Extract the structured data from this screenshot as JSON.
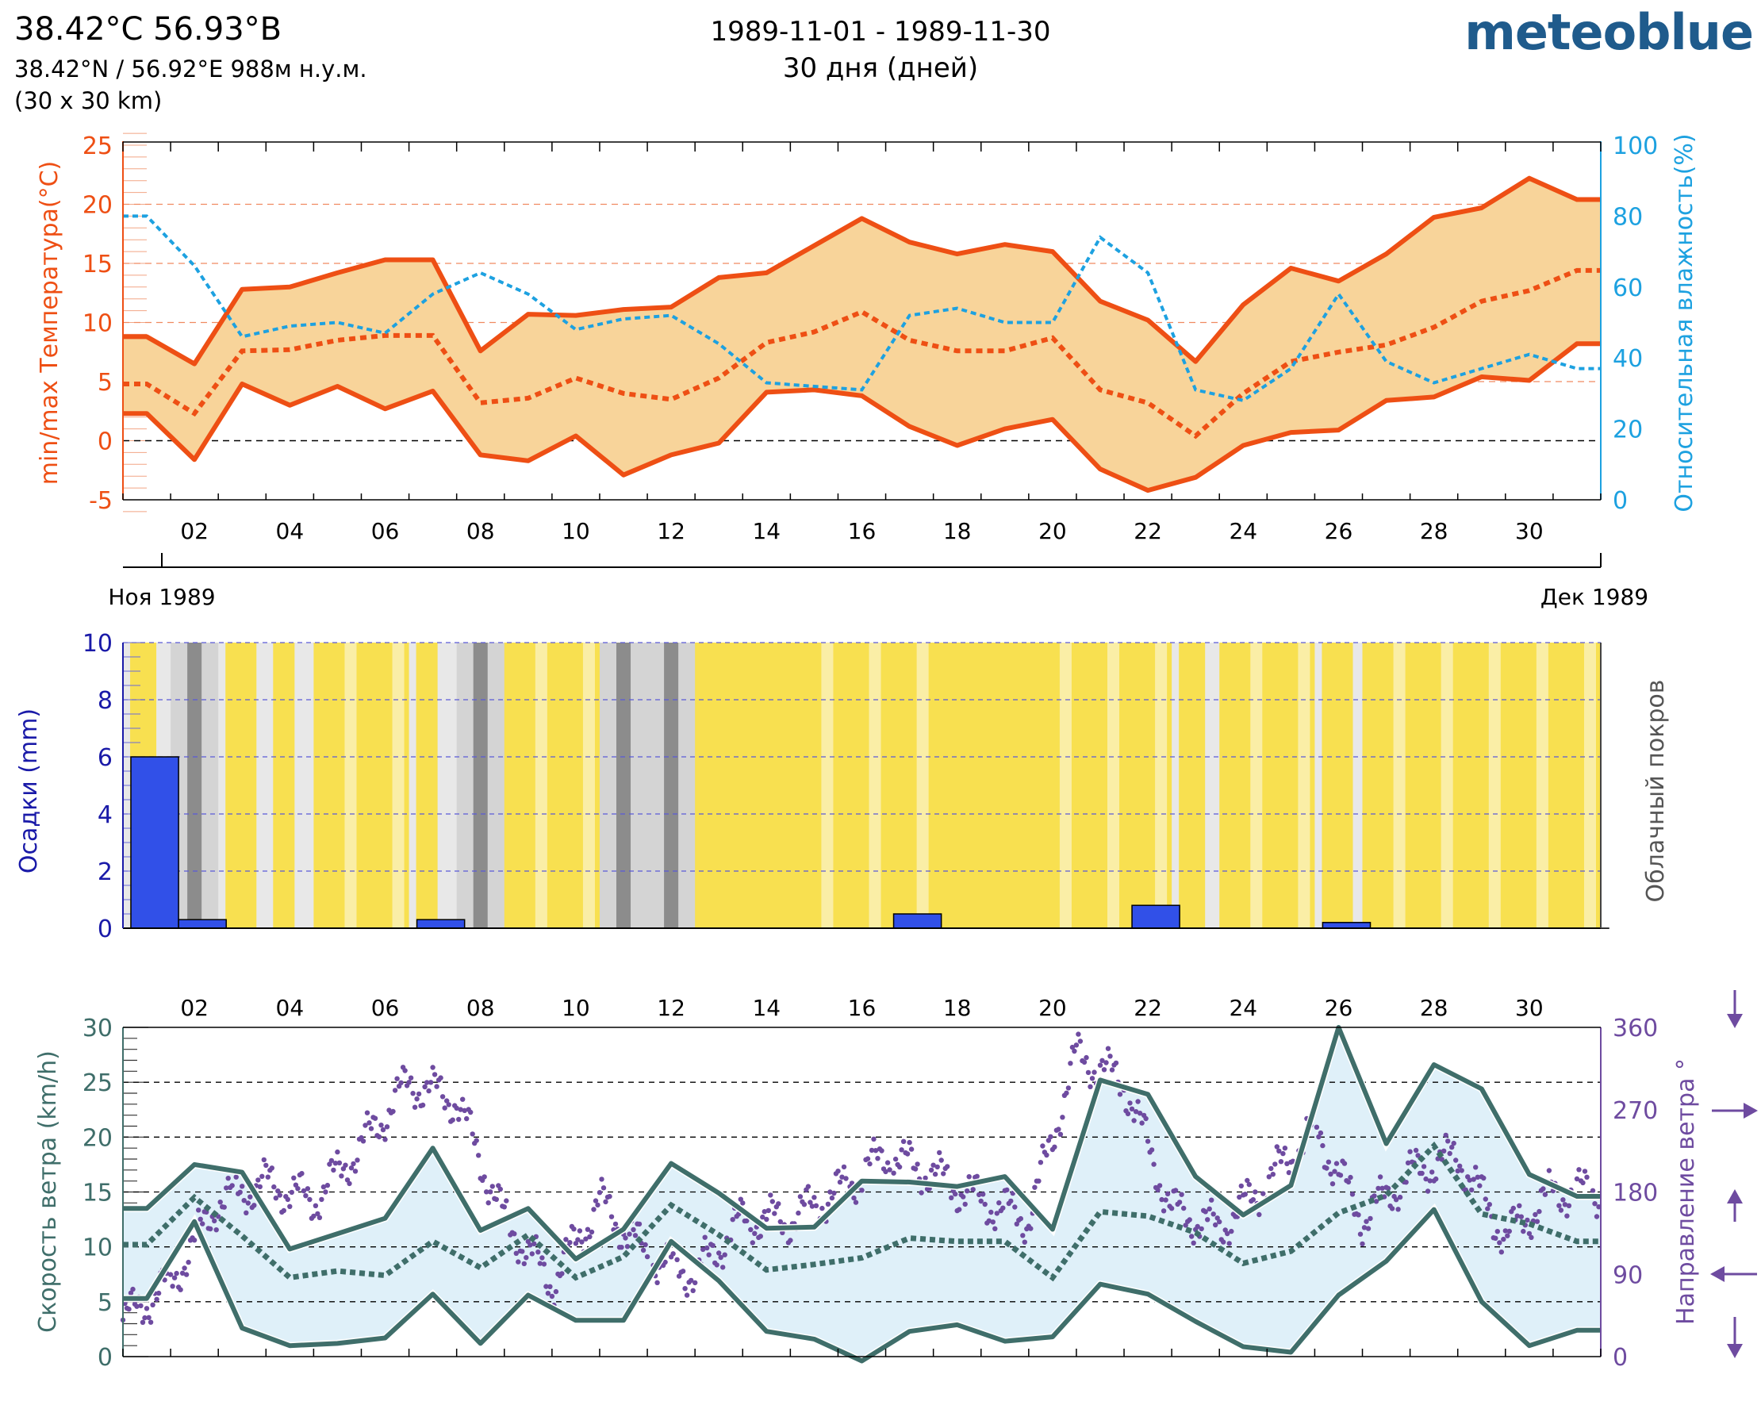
{
  "header": {
    "coords": "38.42°C 56.93°B",
    "latlon": "38.42°N / 56.92°E   988м н.у.м.",
    "grid": "(30 x 30 km)",
    "dates": "1989-11-01 - 1989-11-30",
    "days": "30 дня (дней)",
    "logo": "meteoblue"
  },
  "colors": {
    "temp": "#ee4f14",
    "temp_fill": "#f8d49a",
    "humidity": "#1da1e0",
    "precip": "#3150e8",
    "precip_axis": "#1a1aa8",
    "sun": "#f8e050",
    "sun_light": "#faeea6",
    "cloud": "#e8e8e8",
    "overcast": "#8c8c8c",
    "wind": "#3f6e6a",
    "wind_fill": "#dff0f9",
    "winddir": "#6e4ba0"
  },
  "chart_data": [
    {
      "id": "temperature",
      "type": "line",
      "x": [
        0.5,
        1.5,
        2.5,
        3.5,
        4.5,
        5.5,
        6.5,
        7.5,
        8.5,
        9.5,
        10.5,
        11.5,
        12.5,
        13.5,
        14.5,
        15.5,
        16.5,
        17.5,
        18.5,
        19.5,
        20.5,
        21.5,
        22.5,
        23.5,
        24.5,
        25.5,
        26.5,
        27.5,
        28.5,
        29.5,
        30.5
      ],
      "series": [
        {
          "name": "max",
          "values": [
            8.8,
            6.5,
            12.8,
            13,
            14.2,
            15.3,
            15.3,
            7.6,
            10.7,
            10.6,
            11.1,
            11.3,
            13.8,
            14.2,
            16.5,
            18.8,
            16.8,
            15.8,
            16.6,
            16,
            11.8,
            10.2,
            6.7,
            11.5,
            14.6,
            13.5,
            15.8,
            18.9,
            19.7,
            22.2,
            20.4
          ]
        },
        {
          "name": "mean",
          "values": [
            4.8,
            2.3,
            7.6,
            7.7,
            8.5,
            8.9,
            8.9,
            3.2,
            3.6,
            5.3,
            4,
            3.5,
            5.3,
            8.3,
            9.2,
            10.9,
            8.5,
            7.6,
            7.6,
            8.7,
            4.3,
            3.2,
            0.4,
            4,
            6.7,
            7.5,
            8.1,
            9.6,
            11.8,
            12.7,
            14.4
          ]
        },
        {
          "name": "min",
          "values": [
            2.3,
            -1.6,
            4.8,
            3,
            4.6,
            2.7,
            4.2,
            -1.2,
            -1.7,
            0.4,
            -2.9,
            -1.2,
            -0.2,
            4.1,
            4.3,
            3.8,
            1.2,
            -0.4,
            1,
            1.8,
            -2.4,
            -4.2,
            -3.1,
            -0.4,
            0.7,
            0.9,
            3.4,
            3.7,
            5.4,
            5.1,
            8.2
          ]
        },
        {
          "name": "humidity",
          "axis": "right",
          "values": [
            80,
            66,
            46,
            49,
            50,
            47,
            58,
            64,
            58,
            48,
            51,
            52,
            44,
            33,
            32,
            31,
            52,
            54,
            50,
            50,
            74,
            64,
            31,
            28,
            37,
            58,
            39,
            33,
            37,
            41,
            37
          ]
        }
      ],
      "ylabel": "min/max Температура(°C)",
      "ylabel_right": "Относительная влажность(%)",
      "ylim": [
        -5,
        25
      ],
      "ylim_right": [
        0,
        100
      ],
      "yticks": [
        "-5",
        "0",
        "5",
        "10",
        "15",
        "20",
        "25"
      ],
      "yticks_right": [
        "0",
        "20",
        "40",
        "60",
        "80",
        "100"
      ],
      "xticks": [
        "02",
        "04",
        "06",
        "08",
        "10",
        "12",
        "14",
        "16",
        "18",
        "20",
        "22",
        "24",
        "26",
        "28",
        "30"
      ],
      "month_start": "Ноя 1989",
      "month_end": "Дек 1989"
    },
    {
      "id": "precipitation",
      "type": "bar",
      "x": [
        0.5,
        1.5,
        2.5,
        3.5,
        4.5,
        5.5,
        6.5,
        7.5,
        8.5,
        9.5,
        10.5,
        11.5,
        12.5,
        13.5,
        14.5,
        15.5,
        16.5,
        17.5,
        18.5,
        19.5,
        20.5,
        21.5,
        22.5,
        23.5,
        24.5,
        25.5,
        26.5,
        27.5,
        28.5,
        29.5,
        30.5
      ],
      "values": [
        6,
        0.3,
        0,
        0,
        0,
        0,
        0.3,
        0,
        0,
        0,
        0,
        0,
        0,
        0,
        0,
        0,
        0.5,
        0,
        0,
        0,
        0,
        0.8,
        0,
        0,
        0,
        0.2,
        0,
        0,
        0,
        0,
        0
      ],
      "ylabel": "Осадки (mm)",
      "ylabel_right": "Облачный покров",
      "ylim": [
        0,
        10
      ],
      "yticks": [
        "0",
        "2",
        "4",
        "6",
        "8",
        "10"
      ],
      "cloud_cover_sunshine": [
        0.3,
        0.1,
        0.4,
        0.2,
        0.8,
        0.9,
        0.2,
        0.1,
        0.8,
        0.5,
        0.1,
        0.0,
        1.0,
        1.0,
        0.9,
        0.7,
        0.5,
        1.0,
        1.0,
        0.8,
        0.9,
        0.9,
        0.3,
        0.9,
        0.5,
        0.4,
        0.8,
        0.7,
        0.9,
        0.9,
        0.6
      ]
    },
    {
      "id": "wind",
      "type": "line",
      "x": [
        0.5,
        1.5,
        2.5,
        3.5,
        4.5,
        5.5,
        6.5,
        7.5,
        8.5,
        9.5,
        10.5,
        11.5,
        12.5,
        13.5,
        14.5,
        15.5,
        16.5,
        17.5,
        18.5,
        19.5,
        20.5,
        21.5,
        22.5,
        23.5,
        24.5,
        25.5,
        26.5,
        27.5,
        28.5,
        29.5,
        30.5
      ],
      "series": [
        {
          "name": "max",
          "values": [
            13.5,
            17.5,
            16.8,
            9.8,
            11.2,
            12.6,
            19,
            11.5,
            13.5,
            8.9,
            11.6,
            17.6,
            14.9,
            11.7,
            11.8,
            16,
            15.9,
            15.5,
            16.4,
            11.6,
            25.2,
            23.9,
            16.4,
            12.9,
            15.6,
            30,
            19.4,
            26.6,
            24.4,
            16.6,
            14.6
          ]
        },
        {
          "name": "mean",
          "values": [
            10.2,
            14.5,
            11,
            7.2,
            7.8,
            7.4,
            10.5,
            8.1,
            11.1,
            7.2,
            9.1,
            13.8,
            11.1,
            7.9,
            8.4,
            9,
            10.8,
            10.5,
            10.5,
            7.2,
            13.2,
            12.8,
            11.3,
            8.5,
            9.6,
            13.1,
            14.7,
            19.2,
            13,
            12.1,
            10.5
          ]
        },
        {
          "name": "min",
          "values": [
            5.3,
            12.3,
            2.6,
            1,
            1.2,
            1.7,
            5.7,
            1.2,
            5.6,
            3.3,
            3.3,
            10.5,
            6.9,
            2.3,
            1.6,
            -0.4,
            2.3,
            2.9,
            1.4,
            1.8,
            6.6,
            5.7,
            3.2,
            0.9,
            0.4,
            5.6,
            8.7,
            13.4,
            5,
            1,
            2.4
          ]
        }
      ],
      "direction_daily": [
        40,
        80,
        170,
        190,
        170,
        230,
        300,
        280,
        150,
        80,
        170,
        110,
        90,
        150,
        150,
        180,
        220,
        200,
        170,
        150,
        330,
        300,
        160,
        140,
        190,
        250,
        150,
        200,
        220,
        130,
        180
      ],
      "ylabel": "Скорость ветра (km/h)",
      "ylabel_right": "Направление ветра °",
      "ylim": [
        0,
        30
      ],
      "ylim_right": [
        0,
        360
      ],
      "yticks": [
        "0",
        "5",
        "10",
        "15",
        "20",
        "25",
        "30"
      ],
      "yticks_right": [
        "0",
        "90",
        "180",
        "270",
        "360"
      ],
      "xticks": [
        "02",
        "04",
        "06",
        "08",
        "10",
        "12",
        "14",
        "16",
        "18",
        "20",
        "22",
        "24",
        "26",
        "28",
        "30"
      ]
    }
  ]
}
